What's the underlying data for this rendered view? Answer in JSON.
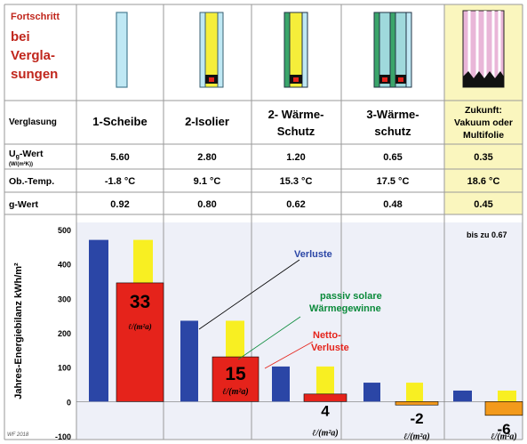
{
  "header": {
    "title_lines": [
      "Fortschritt",
      "bei",
      "Vergla-",
      "sungen"
    ]
  },
  "table": {
    "row_labels": {
      "glazing": "Verglasung",
      "ug_main": "U",
      "ug_sub": "g",
      "ug_rest": "-Wert",
      "ug_unit": "(W/(m²K))",
      "temp": "Ob.-Temp.",
      "g": "g-Wert"
    },
    "columns": [
      {
        "name_lines": [
          "1-Scheibe"
        ],
        "ug": "5.60",
        "temp": "-1.8 °C",
        "g": "0.92"
      },
      {
        "name_lines": [
          "2-Isolier"
        ],
        "ug": "2.80",
        "temp": "9.1 °C",
        "g": "0.80"
      },
      {
        "name_lines": [
          "2- Wärme-",
          "Schutz"
        ],
        "ug": "1.20",
        "temp": "15.3 °C",
        "g": "0.62"
      },
      {
        "name_lines": [
          "3-Wärme-",
          "schutz"
        ],
        "ug": "0.65",
        "temp": "17.5 °C",
        "g": "0.48"
      },
      {
        "name_lines": [
          "Zukunft:",
          "Vakuum oder",
          "Multifolie"
        ],
        "ug": "0.35",
        "temp": "18.6 °C",
        "g": "0.45"
      }
    ]
  },
  "colors": {
    "loss": "#2b46a6",
    "solar": "#f8ef22",
    "net_positive": "#e5231b",
    "net_negative": "#f39a1c",
    "future_bg": "#faf6be",
    "chart_bg": "#eef0f8"
  },
  "chart_data": {
    "type": "bar",
    "ylabel": "Jahres-Energiebilanz kWh/m²",
    "ylim": [
      -100,
      500
    ],
    "yticks": [
      "500",
      "400",
      "300",
      "200",
      "100",
      "0",
      "-100"
    ],
    "categories": [
      "1-Scheibe",
      "2-Isolier",
      "2- Wärme-Schutz",
      "3-Wärme-schutz",
      "Zukunft"
    ],
    "series": [
      {
        "name": "Verluste",
        "values": [
          470,
          235,
          102,
          55,
          32
        ]
      },
      {
        "name": "passiv solare Wärmegewinne",
        "values": [
          470,
          235,
          102,
          55,
          32
        ]
      },
      {
        "name": "Netto-Verluste",
        "values": [
          345,
          130,
          22,
          -10,
          -40
        ]
      }
    ],
    "net_labels": [
      "33",
      "15",
      "4",
      "-2",
      "-6"
    ],
    "net_unit_labels": [
      "ℓ/(m²a)",
      "ℓ/(m²a)",
      "ℓ/(m²a)",
      "ℓ/(m²a)",
      "ℓ/(m²a)"
    ],
    "annotations": {
      "verluste": "Verluste",
      "passiv_line1": "passiv solare",
      "passiv_line2": "Wärmegewinne",
      "netto_line1": "Netto-",
      "netto_line2": "Verluste",
      "bis_zu": "bis zu 0.67"
    },
    "credit": "WF 2018"
  }
}
